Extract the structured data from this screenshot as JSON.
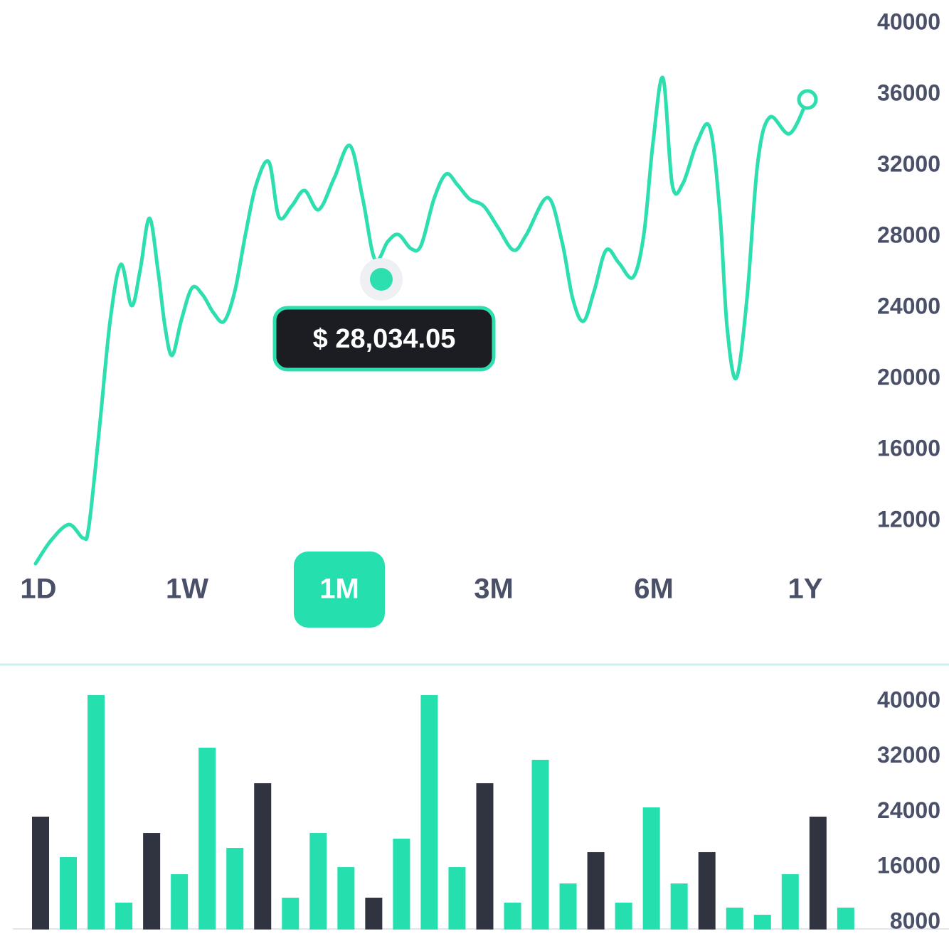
{
  "chart_data": [
    {
      "type": "line",
      "color": "#2ddfae",
      "x": [
        0,
        22,
        47,
        67,
        75,
        90,
        105,
        120,
        135,
        147,
        160,
        172,
        182,
        192,
        205,
        220,
        235,
        250,
        265,
        280,
        295,
        310,
        328,
        342,
        360,
        378,
        398,
        420,
        442,
        460,
        477,
        495,
        510,
        528,
        542,
        560,
        577,
        593,
        610,
        630,
        650,
        672,
        690,
        720,
        740,
        755,
        770,
        785,
        802,
        820,
        840,
        855,
        868,
        882,
        895,
        910,
        930,
        948,
        962,
        972,
        985,
        1000,
        1015,
        1032,
        1060,
        1085
      ],
      "values": [
        9600,
        10920,
        11800,
        11040,
        11720,
        17320,
        23320,
        26440,
        24120,
        26120,
        29040,
        26120,
        22920,
        21320,
        23320,
        25120,
        24720,
        23720,
        23240,
        24920,
        28120,
        30920,
        32200,
        29120,
        29720,
        30600,
        29520,
        31320,
        33120,
        30120,
        26720,
        27720,
        28120,
        27320,
        27520,
        30120,
        31520,
        30920,
        30120,
        29720,
        28520,
        27240,
        28120,
        30200,
        27720,
        24520,
        23240,
        24920,
        27240,
        26520,
        25720,
        28120,
        33320,
        36920,
        30920,
        31000,
        33320,
        34120,
        29320,
        22920,
        20040,
        24520,
        32120,
        34720,
        33800,
        35720
      ],
      "xlim": [
        0,
        1085
      ],
      "ylim": [
        9000,
        40000
      ],
      "yticks": [
        40000,
        36000,
        32000,
        28000,
        24000,
        20000,
        16000,
        12000
      ]
    },
    {
      "type": "bar",
      "values": [
        23330,
        17470,
        40930,
        10880,
        20960,
        15000,
        33310,
        18800,
        28170,
        11600,
        20960,
        16020,
        11600,
        20140,
        40930,
        16020,
        28170,
        10880,
        31560,
        13660,
        18190,
        10880,
        24670,
        13660,
        18190,
        10160,
        9130,
        15000,
        23330,
        10160
      ],
      "colors": [
        "#2f3440",
        "#26dfae",
        "#26dfae",
        "#26dfae",
        "#2f3440",
        "#26dfae",
        "#26dfae",
        "#26dfae",
        "#2f3440",
        "#26dfae",
        "#26dfae",
        "#26dfae",
        "#2f3440",
        "#26dfae",
        "#26dfae",
        "#26dfae",
        "#2f3440",
        "#26dfae",
        "#26dfae",
        "#26dfae",
        "#2f3440",
        "#26dfae",
        "#26dfae",
        "#26dfae",
        "#2f3440",
        "#26dfae",
        "#26dfae",
        "#26dfae",
        "#2f3440",
        "#26dfae"
      ],
      "ylim": [
        7000,
        40000
      ],
      "yticks": [
        40000,
        32000,
        24000,
        16000,
        8000
      ]
    }
  ],
  "tooltip": {
    "label": "$ 28,034.05"
  },
  "tabs": {
    "items": [
      "1D",
      "1W",
      "1M",
      "3M",
      "6M",
      "1Y"
    ],
    "selected": 2
  }
}
